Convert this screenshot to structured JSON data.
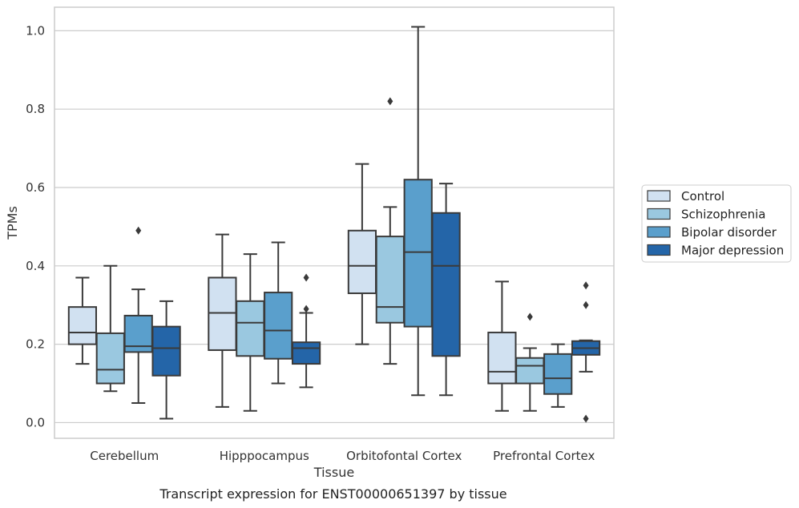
{
  "chart_data": {
    "type": "box",
    "xlabel": "Tissue",
    "ylabel": "TPMs",
    "caption": "Transcript expression for ENST00000651397 by tissue",
    "ylim": [
      -0.04,
      1.06
    ],
    "yticks": [
      "0.0",
      "0.2",
      "0.4",
      "0.6",
      "0.8",
      "1.0"
    ],
    "grid": "horizontal",
    "legend_placement": "right",
    "categories": [
      "Cerebellum",
      "Hipppocampus",
      "Orbitofontal Cortex",
      "Prefrontal Cortex"
    ],
    "series": [
      {
        "name": "Control",
        "color": "#d1e1f1",
        "boxes": [
          {
            "min": 0.15,
            "q1": 0.2,
            "median": 0.23,
            "q3": 0.295,
            "max": 0.37,
            "outliers": []
          },
          {
            "min": 0.04,
            "q1": 0.185,
            "median": 0.28,
            "q3": 0.37,
            "max": 0.48,
            "outliers": []
          },
          {
            "min": 0.2,
            "q1": 0.33,
            "median": 0.4,
            "q3": 0.49,
            "max": 0.66,
            "outliers": []
          },
          {
            "min": 0.03,
            "q1": 0.1,
            "median": 0.13,
            "q3": 0.23,
            "max": 0.36,
            "outliers": []
          }
        ]
      },
      {
        "name": "Schizophrenia",
        "color": "#9ac8e0",
        "boxes": [
          {
            "min": 0.08,
            "q1": 0.1,
            "median": 0.135,
            "q3": 0.228,
            "max": 0.4,
            "outliers": []
          },
          {
            "min": 0.03,
            "q1": 0.17,
            "median": 0.255,
            "q3": 0.31,
            "max": 0.43,
            "outliers": []
          },
          {
            "min": 0.15,
            "q1": 0.255,
            "median": 0.295,
            "q3": 0.475,
            "max": 0.55,
            "outliers": [
              0.82
            ]
          },
          {
            "min": 0.03,
            "q1": 0.1,
            "median": 0.145,
            "q3": 0.165,
            "max": 0.19,
            "outliers": [
              0.27
            ]
          }
        ]
      },
      {
        "name": "Bipolar disorder",
        "color": "#5a9fcc",
        "boxes": [
          {
            "min": 0.05,
            "q1": 0.18,
            "median": 0.195,
            "q3": 0.273,
            "max": 0.34,
            "outliers": [
              0.49
            ]
          },
          {
            "min": 0.1,
            "q1": 0.163,
            "median": 0.235,
            "q3": 0.332,
            "max": 0.46,
            "outliers": []
          },
          {
            "min": 0.07,
            "q1": 0.245,
            "median": 0.435,
            "q3": 0.62,
            "max": 1.01,
            "outliers": []
          },
          {
            "min": 0.04,
            "q1": 0.073,
            "median": 0.113,
            "q3": 0.175,
            "max": 0.2,
            "outliers": []
          }
        ]
      },
      {
        "name": "Major depression",
        "color": "#2465a8",
        "boxes": [
          {
            "min": 0.01,
            "q1": 0.12,
            "median": 0.19,
            "q3": 0.245,
            "max": 0.31,
            "outliers": []
          },
          {
            "min": 0.09,
            "q1": 0.15,
            "median": 0.19,
            "q3": 0.205,
            "max": 0.28,
            "outliers": [
              0.37,
              0.29
            ]
          },
          {
            "min": 0.07,
            "q1": 0.17,
            "median": 0.4,
            "q3": 0.535,
            "max": 0.61,
            "outliers": []
          },
          {
            "min": 0.13,
            "q1": 0.173,
            "median": 0.19,
            "q3": 0.208,
            "max": 0.21,
            "outliers": [
              0.35,
              0.3,
              0.01
            ]
          }
        ]
      }
    ]
  }
}
